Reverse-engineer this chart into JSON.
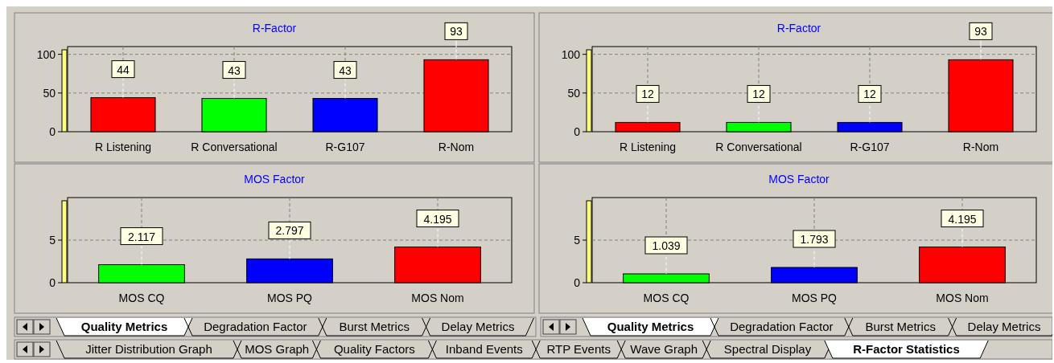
{
  "chart_data": [
    {
      "type": "bar",
      "title": "R-Factor",
      "categories": [
        "R Listening",
        "R Conversational",
        "R-G107",
        "R-Nom"
      ],
      "values": [
        44,
        43,
        43,
        93
      ],
      "colors": [
        "#ff0000",
        "#00ff00",
        "#0000ff",
        "#ff0000"
      ],
      "ylim": [
        0,
        110
      ],
      "yticks": [
        0,
        50,
        100
      ],
      "grid": true,
      "data_labels": true
    },
    {
      "type": "bar",
      "title": "R-Factor",
      "categories": [
        "R Listening",
        "R Conversational",
        "R-G107",
        "R-Nom"
      ],
      "values": [
        12,
        12,
        12,
        93
      ],
      "colors": [
        "#ff0000",
        "#00ff00",
        "#0000ff",
        "#ff0000"
      ],
      "ylim": [
        0,
        110
      ],
      "yticks": [
        0,
        50,
        100
      ],
      "grid": true,
      "data_labels": true
    },
    {
      "type": "bar",
      "title": "MOS Factor",
      "categories": [
        "MOS CQ",
        "MOS PQ",
        "MOS Nom"
      ],
      "values": [
        2.117,
        2.797,
        4.195
      ],
      "colors": [
        "#00ff00",
        "#0000ff",
        "#ff0000"
      ],
      "ylim": [
        0,
        10
      ],
      "yticks": [
        0,
        5
      ],
      "grid": true,
      "data_labels": true
    },
    {
      "type": "bar",
      "title": "MOS Factor",
      "categories": [
        "MOS CQ",
        "MOS PQ",
        "MOS Nom"
      ],
      "values": [
        1.039,
        1.793,
        4.195
      ],
      "colors": [
        "#00ff00",
        "#0000ff",
        "#ff0000"
      ],
      "ylim": [
        0,
        10
      ],
      "yticks": [
        0,
        5
      ],
      "grid": true,
      "data_labels": true
    },
    {
      "type": "other",
      "annotations": [
        "Quality Metrics",
        "Degradation Factor",
        "Burst Metrics",
        "Delay Metrics",
        "Quality Metrics",
        "Degradation Factor",
        "Burst Metrics",
        "Delay Metrics",
        "Jitter Distribution Graph",
        "MOS Graph",
        "Quality Factors",
        "Inband Events",
        "RTP Events",
        "Wave Graph",
        "Spectral Display",
        "R-Factor Statistics"
      ]
    }
  ]
}
